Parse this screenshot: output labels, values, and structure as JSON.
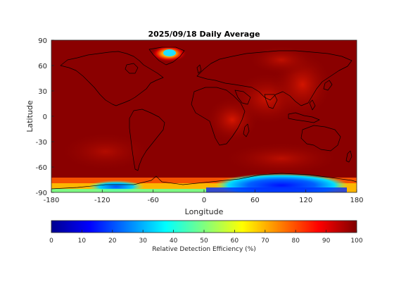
{
  "title": "2025/09/18 Daily Average",
  "xlabel": "Longitude",
  "ylabel": "Latitude",
  "x_ticks": [
    -180,
    -120,
    -60,
    0,
    60,
    120,
    180
  ],
  "y_ticks": [
    90,
    60,
    30,
    0,
    -30,
    -60,
    -90
  ],
  "colorbar": {
    "label": "Relative Detection Efficiency (%)",
    "ticks": [
      0,
      10,
      20,
      30,
      40,
      50,
      60,
      70,
      80,
      90,
      100
    ],
    "colormap": "jet",
    "range": [
      0,
      100
    ]
  },
  "map": {
    "projection": "equirectangular",
    "lon_range": [
      -180,
      180
    ],
    "lat_range": [
      -90,
      90
    ],
    "background_value": 98,
    "regions": [
      {
        "lon": -35,
        "lat": 76,
        "value": 38
      },
      {
        "lon": -42,
        "lat": 80,
        "value": 70
      },
      {
        "lon": 100,
        "lat": 60,
        "value": 85
      },
      {
        "lon": 120,
        "lat": 35,
        "value": 88
      },
      {
        "lon": 30,
        "lat": 5,
        "value": 88
      },
      {
        "lon": 70,
        "lat": -5,
        "value": 90
      },
      {
        "lon": 90,
        "lat": -78,
        "value": 15
      },
      {
        "lon": 130,
        "lat": -78,
        "value": 22
      },
      {
        "lon": -105,
        "lat": -80,
        "value": 30
      },
      {
        "lon": -150,
        "lat": -84,
        "value": 55
      }
    ]
  },
  "colors": {
    "axis": "#262626",
    "coastline": "#000000"
  }
}
